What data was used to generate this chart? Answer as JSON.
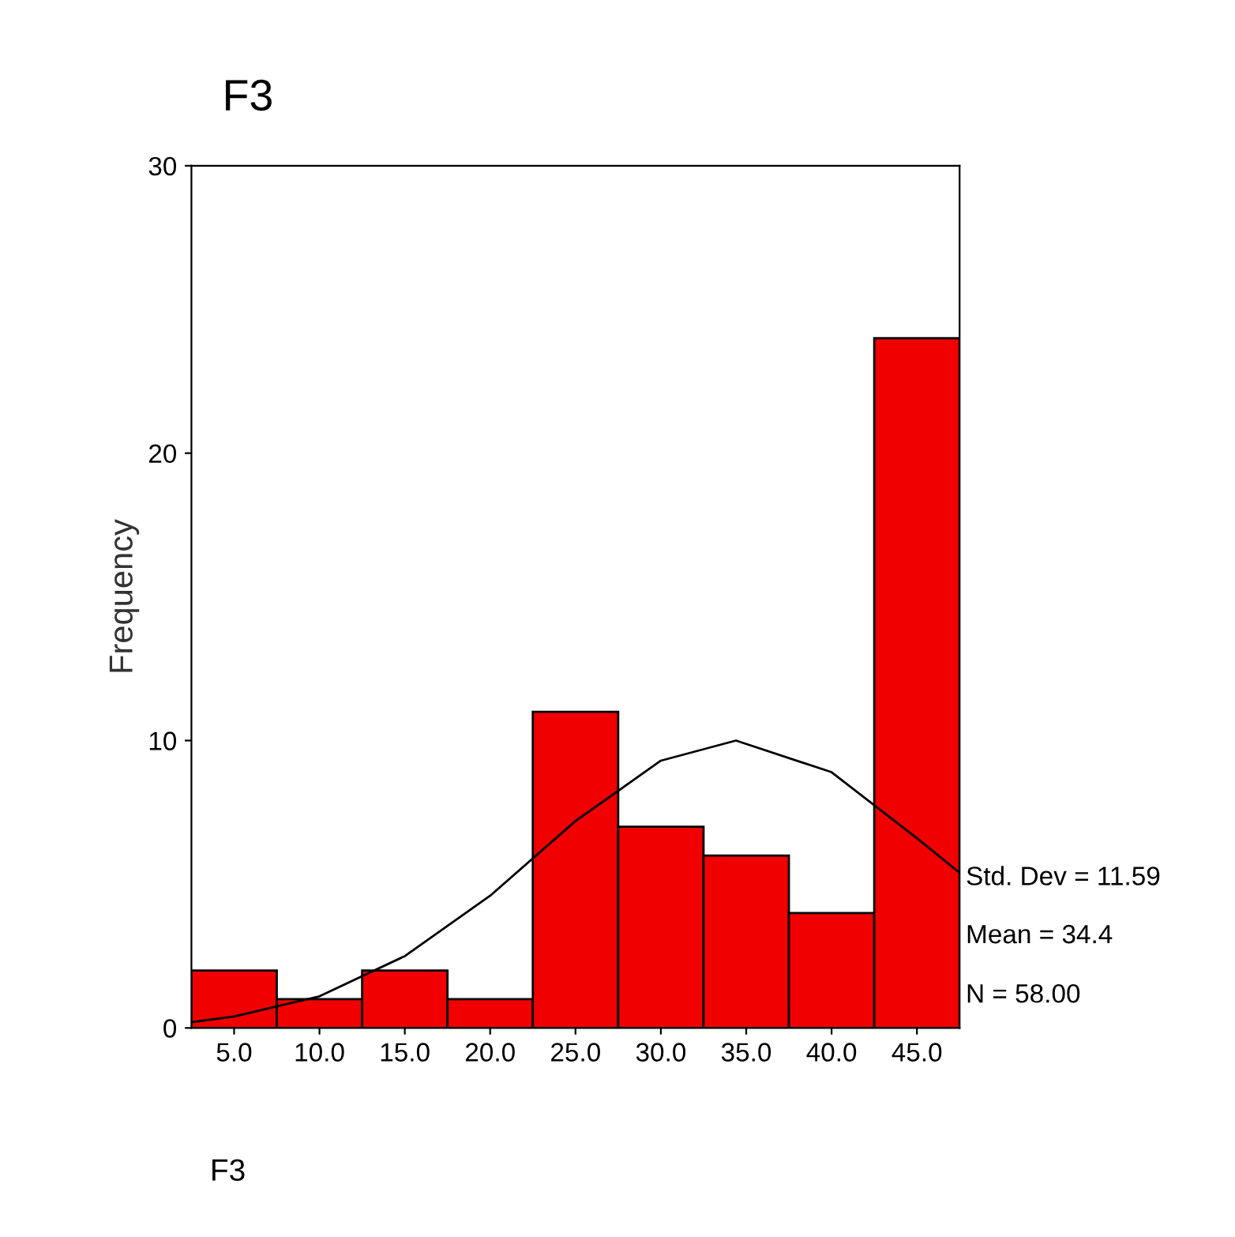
{
  "chart_data": {
    "type": "histogram",
    "title": "F3",
    "xlabel": "F3",
    "ylabel": "Frequency",
    "bins": [
      2.5,
      7.5,
      12.5,
      17.5,
      22.5,
      27.5,
      32.5,
      37.5,
      42.5,
      47.5
    ],
    "values": [
      2,
      1,
      2,
      1,
      11,
      7,
      6,
      4,
      24
    ],
    "color": "#f00000",
    "series": [
      {
        "type": "line",
        "color": "#000000",
        "x": [
          2.5,
          5,
          10,
          15,
          20,
          25,
          30,
          34.4,
          40,
          45,
          47.5
        ],
        "values": [
          0.2,
          0.4,
          1.1,
          2.5,
          4.6,
          7.2,
          9.3,
          10.0,
          8.9,
          6.6,
          5.4
        ]
      }
    ],
    "xlim": [
      2.5,
      47.5
    ],
    "ylim": [
      0,
      30
    ],
    "xticks": [
      {
        "value": 5,
        "label": "5.0"
      },
      {
        "value": 10,
        "label": "10.0"
      },
      {
        "value": 15,
        "label": "15.0"
      },
      {
        "value": 20,
        "label": "20.0"
      },
      {
        "value": 25,
        "label": "25.0"
      },
      {
        "value": 30,
        "label": "30.0"
      },
      {
        "value": 35,
        "label": "35.0"
      },
      {
        "value": 40,
        "label": "40.0"
      },
      {
        "value": 45,
        "label": "45.0"
      }
    ],
    "yticks": [
      0,
      10,
      20,
      30
    ],
    "annotations": [
      "Std. Dev = 11.59",
      "Mean = 34.4",
      "N = 58.00"
    ],
    "grid": false,
    "legend": false
  }
}
